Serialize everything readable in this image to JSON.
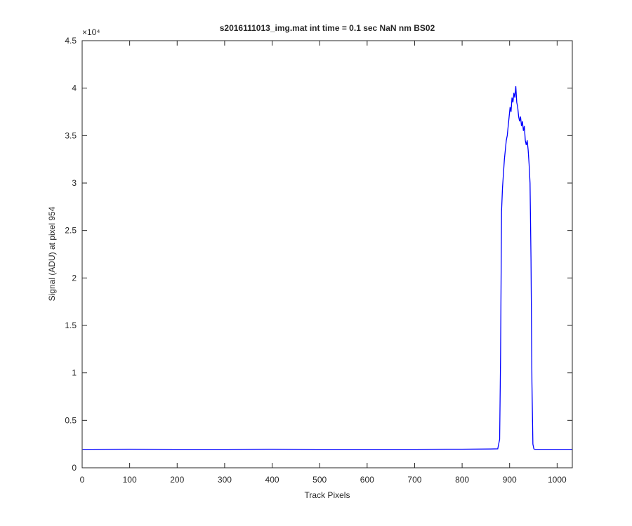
{
  "chart_data": {
    "type": "line",
    "title": "s2016111013_img.mat int time = 0.1 sec  NaN nm BS02",
    "xlabel": "Track Pixels",
    "ylabel": "Signal (ADU) at pixel 954",
    "y_multiplier": "×10⁴",
    "xlim": [
      0,
      1032
    ],
    "xticks": [
      0,
      100,
      200,
      300,
      400,
      500,
      600,
      700,
      800,
      900,
      1000
    ],
    "ylim": [
      0,
      45000
    ],
    "yticks": [
      {
        "value": 0,
        "label": "0"
      },
      {
        "value": 5000,
        "label": "0.5"
      },
      {
        "value": 10000,
        "label": "1"
      },
      {
        "value": 15000,
        "label": "1.5"
      },
      {
        "value": 20000,
        "label": "2"
      },
      {
        "value": 25000,
        "label": "2.5"
      },
      {
        "value": 30000,
        "label": "3"
      },
      {
        "value": 35000,
        "label": "3.5"
      },
      {
        "value": 40000,
        "label": "4"
      },
      {
        "value": 45000,
        "label": "4.5"
      }
    ],
    "grid": false,
    "series": [
      {
        "color": "#0000ff",
        "x": [
          1,
          100,
          200,
          300,
          400,
          500,
          600,
          700,
          800,
          860,
          875,
          879,
          881,
          883,
          885,
          887,
          889,
          891,
          893,
          895,
          897,
          899,
          901,
          903,
          905,
          907,
          909,
          911,
          913,
          915,
          917,
          919,
          921,
          923,
          925,
          927,
          929,
          931,
          933,
          935,
          937,
          939,
          941,
          943,
          945,
          947,
          949,
          951,
          953,
          1000,
          1032
        ],
        "values": [
          1950,
          1960,
          1950,
          1950,
          1960,
          1950,
          1950,
          1950,
          1960,
          1980,
          2000,
          3000,
          12000,
          27000,
          29500,
          31000,
          32500,
          33500,
          34500,
          35000,
          36000,
          37000,
          38000,
          37500,
          39000,
          38500,
          39500,
          39000,
          40200,
          38500,
          38000,
          37000,
          36500,
          37000,
          36000,
          36500,
          35500,
          36000,
          34500,
          34000,
          34500,
          33500,
          32000,
          30000,
          22000,
          9000,
          2500,
          2000,
          1950,
          1950,
          1950
        ]
      }
    ]
  }
}
